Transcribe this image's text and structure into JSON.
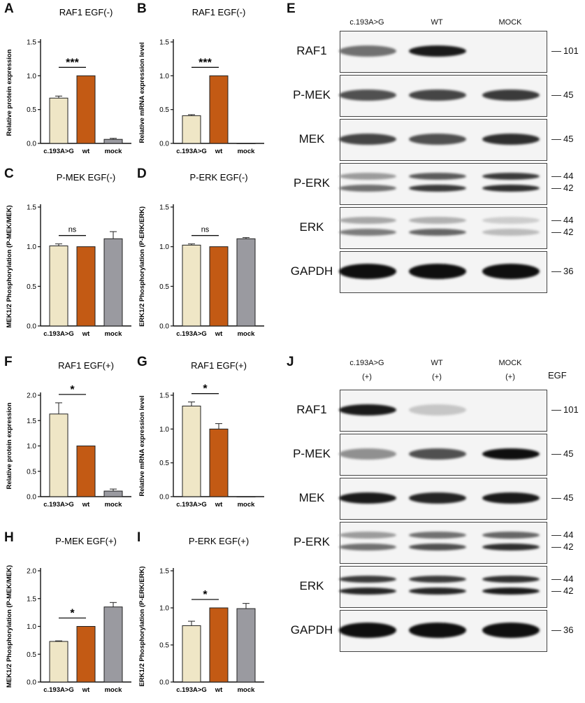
{
  "panel_letters": {
    "A": "A",
    "B": "B",
    "C": "C",
    "D": "D",
    "E": "E",
    "F": "F",
    "G": "G",
    "H": "H",
    "I": "I",
    "J": "J"
  },
  "colors": {
    "mutant": "#efe6c6",
    "wt": "#c35a14",
    "mock": "#9a9aa0"
  },
  "chart_data": [
    {
      "id": "A",
      "type": "bar",
      "title": "RAF1 EGF(-)",
      "ylabel": "Relative protein expression",
      "categories": [
        "c.193A>G",
        "wt",
        "mock"
      ],
      "values": [
        0.67,
        1.0,
        0.06
      ],
      "errors": [
        0.03,
        0,
        0.015
      ],
      "ylim": [
        0,
        1.5
      ],
      "yticks": [
        "0.0",
        "0.5",
        "1.0",
        "1.5"
      ],
      "significance": {
        "label": "***",
        "from": 0,
        "to": 1
      }
    },
    {
      "id": "B",
      "type": "bar",
      "title": "RAF1 EGF(-)",
      "ylabel": "Relative mRNA expression level",
      "categories": [
        "c.193A>G",
        "wt",
        "mock"
      ],
      "values": [
        0.41,
        1.0,
        0
      ],
      "errors": [
        0.015,
        0,
        0
      ],
      "ylim": [
        0,
        1.5
      ],
      "yticks": [
        "0.0",
        "0.5",
        "1.0",
        "1.5"
      ],
      "significance": {
        "label": "***",
        "from": 0,
        "to": 1
      }
    },
    {
      "id": "C",
      "type": "bar",
      "title": "P-MEK EGF(-)",
      "ylabel": "MEK1/2 Phosphorylation (P-MEK/MEK)",
      "categories": [
        "c.193A>G",
        "wt",
        "mock"
      ],
      "values": [
        1.01,
        1.0,
        1.1
      ],
      "errors": [
        0.025,
        0,
        0.09
      ],
      "ylim": [
        0,
        1.5
      ],
      "yticks": [
        "0.0",
        "0.5",
        "1.0",
        "1.5"
      ],
      "significance": {
        "label": "ns",
        "from": 0,
        "to": 1
      }
    },
    {
      "id": "D",
      "type": "bar",
      "title": "P-ERK EGF(-)",
      "ylabel": "ERK1/2 Phosphorylation (P-ERK/ERK)",
      "categories": [
        "c.193A>G",
        "wt",
        "mock"
      ],
      "values": [
        1.02,
        1.0,
        1.1
      ],
      "errors": [
        0.015,
        0,
        0.015
      ],
      "ylim": [
        0,
        1.5
      ],
      "yticks": [
        "0.0",
        "0.5",
        "1.0",
        "1.5"
      ],
      "significance": {
        "label": "ns",
        "from": 0,
        "to": 1
      }
    },
    {
      "id": "F",
      "type": "bar",
      "title": "RAF1 EGF(+)",
      "ylabel": "Relative protein expression",
      "categories": [
        "c.193A>G",
        "wt",
        "mock"
      ],
      "values": [
        1.63,
        1.0,
        0.11
      ],
      "errors": [
        0.22,
        0,
        0.04
      ],
      "ylim": [
        0,
        2.0
      ],
      "yticks": [
        "0.0",
        "0.5",
        "1.0",
        "1.5",
        "2.0"
      ],
      "significance": {
        "label": "*",
        "from": 0,
        "to": 1
      }
    },
    {
      "id": "G",
      "type": "bar",
      "title": "RAF1 EGF(+)",
      "ylabel": "Relative mRNA expression level",
      "categories": [
        "c.193A>G",
        "wt",
        "mock"
      ],
      "values": [
        1.34,
        1.0,
        0
      ],
      "errors": [
        0.06,
        0.08,
        0
      ],
      "ylim": [
        0,
        1.5
      ],
      "yticks": [
        "0.0",
        "0.5",
        "1.0",
        "1.5"
      ],
      "significance": {
        "label": "*",
        "from": 0,
        "to": 1
      }
    },
    {
      "id": "H",
      "type": "bar",
      "title": "P-MEK EGF(+)",
      "ylabel": "MEK1/2 Phosphorylation (P-MEK/MEK)",
      "categories": [
        "c.193A>G",
        "wt",
        "mock"
      ],
      "values": [
        0.73,
        1.0,
        1.35
      ],
      "errors": [
        0.01,
        0,
        0.08
      ],
      "ylim": [
        0,
        2.0
      ],
      "yticks": [
        "0.0",
        "0.5",
        "1.0",
        "1.5",
        "2.0"
      ],
      "significance": {
        "label": "*",
        "from": 0,
        "to": 1
      }
    },
    {
      "id": "I",
      "type": "bar",
      "title": "P-ERK EGF(+)",
      "ylabel": "ERK1/2 Phosphorylation (P-ERK/ERK)",
      "categories": [
        "c.193A>G",
        "wt",
        "mock"
      ],
      "values": [
        0.76,
        1.0,
        0.99
      ],
      "errors": [
        0.06,
        0,
        0.07
      ],
      "ylim": [
        0,
        1.5
      ],
      "yticks": [
        "0.0",
        "0.5",
        "1.0",
        "1.5"
      ],
      "significance": {
        "label": "*",
        "from": 0,
        "to": 1
      }
    }
  ],
  "blots": [
    {
      "id": "E",
      "headers": [
        "c.193A>G",
        "WT",
        "MOCK"
      ],
      "egf": "",
      "rows": [
        {
          "label": "RAF1",
          "markers": [
            "101"
          ],
          "bands": [
            [
              0.55,
              0.95,
              0
            ]
          ],
          "double": false
        },
        {
          "label": "P-MEK",
          "markers": [
            "45"
          ],
          "bands": [
            [
              0.7,
              0.75,
              0.8
            ]
          ],
          "double": false
        },
        {
          "label": "MEK",
          "markers": [
            "45"
          ],
          "bands": [
            [
              0.75,
              0.7,
              0.85
            ]
          ],
          "double": false
        },
        {
          "label": "P-ERK",
          "markers": [
            "44",
            "42"
          ],
          "bands": [
            [
              0.35,
              0.65,
              0.8
            ],
            [
              0.55,
              0.8,
              0.85
            ]
          ],
          "double": true
        },
        {
          "label": "ERK",
          "markers": [
            "44",
            "42"
          ],
          "bands": [
            [
              0.3,
              0.25,
              0.12
            ],
            [
              0.5,
              0.6,
              0.2
            ]
          ],
          "double": true
        },
        {
          "label": "GAPDH",
          "markers": [
            "36"
          ],
          "bands": [
            [
              1,
              1,
              1
            ]
          ],
          "double": false
        }
      ]
    },
    {
      "id": "J",
      "headers": [
        "c.193A>G\n(+)",
        "WT\n(+)",
        "MOCK\n(+)"
      ],
      "egf": "EGF",
      "rows": [
        {
          "label": "RAF1",
          "markers": [
            "101"
          ],
          "bands": [
            [
              0.95,
              0.15,
              0
            ]
          ],
          "double": false
        },
        {
          "label": "P-MEK",
          "markers": [
            "45"
          ],
          "bands": [
            [
              0.4,
              0.7,
              1
            ]
          ],
          "double": false
        },
        {
          "label": "MEK",
          "markers": [
            "45"
          ],
          "bands": [
            [
              0.95,
              0.9,
              0.95
            ]
          ],
          "double": false
        },
        {
          "label": "P-ERK",
          "markers": [
            "44",
            "42"
          ],
          "bands": [
            [
              0.35,
              0.55,
              0.6
            ],
            [
              0.55,
              0.7,
              0.85
            ]
          ],
          "double": true
        },
        {
          "label": "ERK",
          "markers": [
            "44",
            "42"
          ],
          "bands": [
            [
              0.8,
              0.8,
              0.85
            ],
            [
              0.9,
              0.9,
              0.95
            ]
          ],
          "double": true
        },
        {
          "label": "GAPDH",
          "markers": [
            "36"
          ],
          "bands": [
            [
              1,
              1,
              1
            ]
          ],
          "double": false
        }
      ]
    }
  ]
}
